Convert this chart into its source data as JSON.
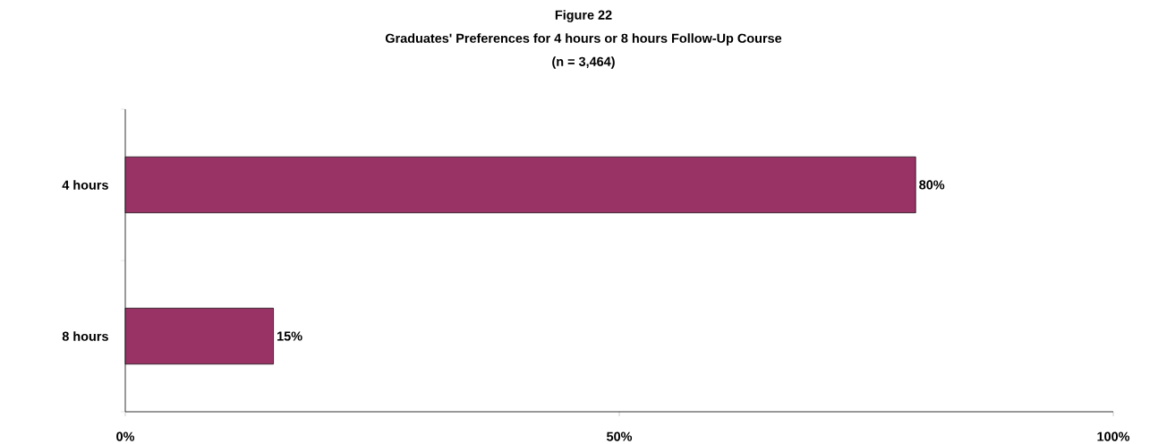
{
  "chart_data": {
    "type": "bar",
    "orientation": "horizontal",
    "title": "Figure 22",
    "subtitle": "Graduates' Preferences for 4 hours or 8 hours Follow-Up Course",
    "annotations": [
      "(n = 3,464)"
    ],
    "categories": [
      "4 hours",
      "8 hours"
    ],
    "values": [
      80,
      15
    ],
    "value_labels": [
      "80%",
      "15%"
    ],
    "color": "#993366",
    "xlim": [
      0,
      100
    ],
    "xticks": [
      {
        "value": 0,
        "label": "0%"
      },
      {
        "value": 50,
        "label": "50%"
      },
      {
        "value": 100,
        "label": "100%"
      }
    ]
  }
}
